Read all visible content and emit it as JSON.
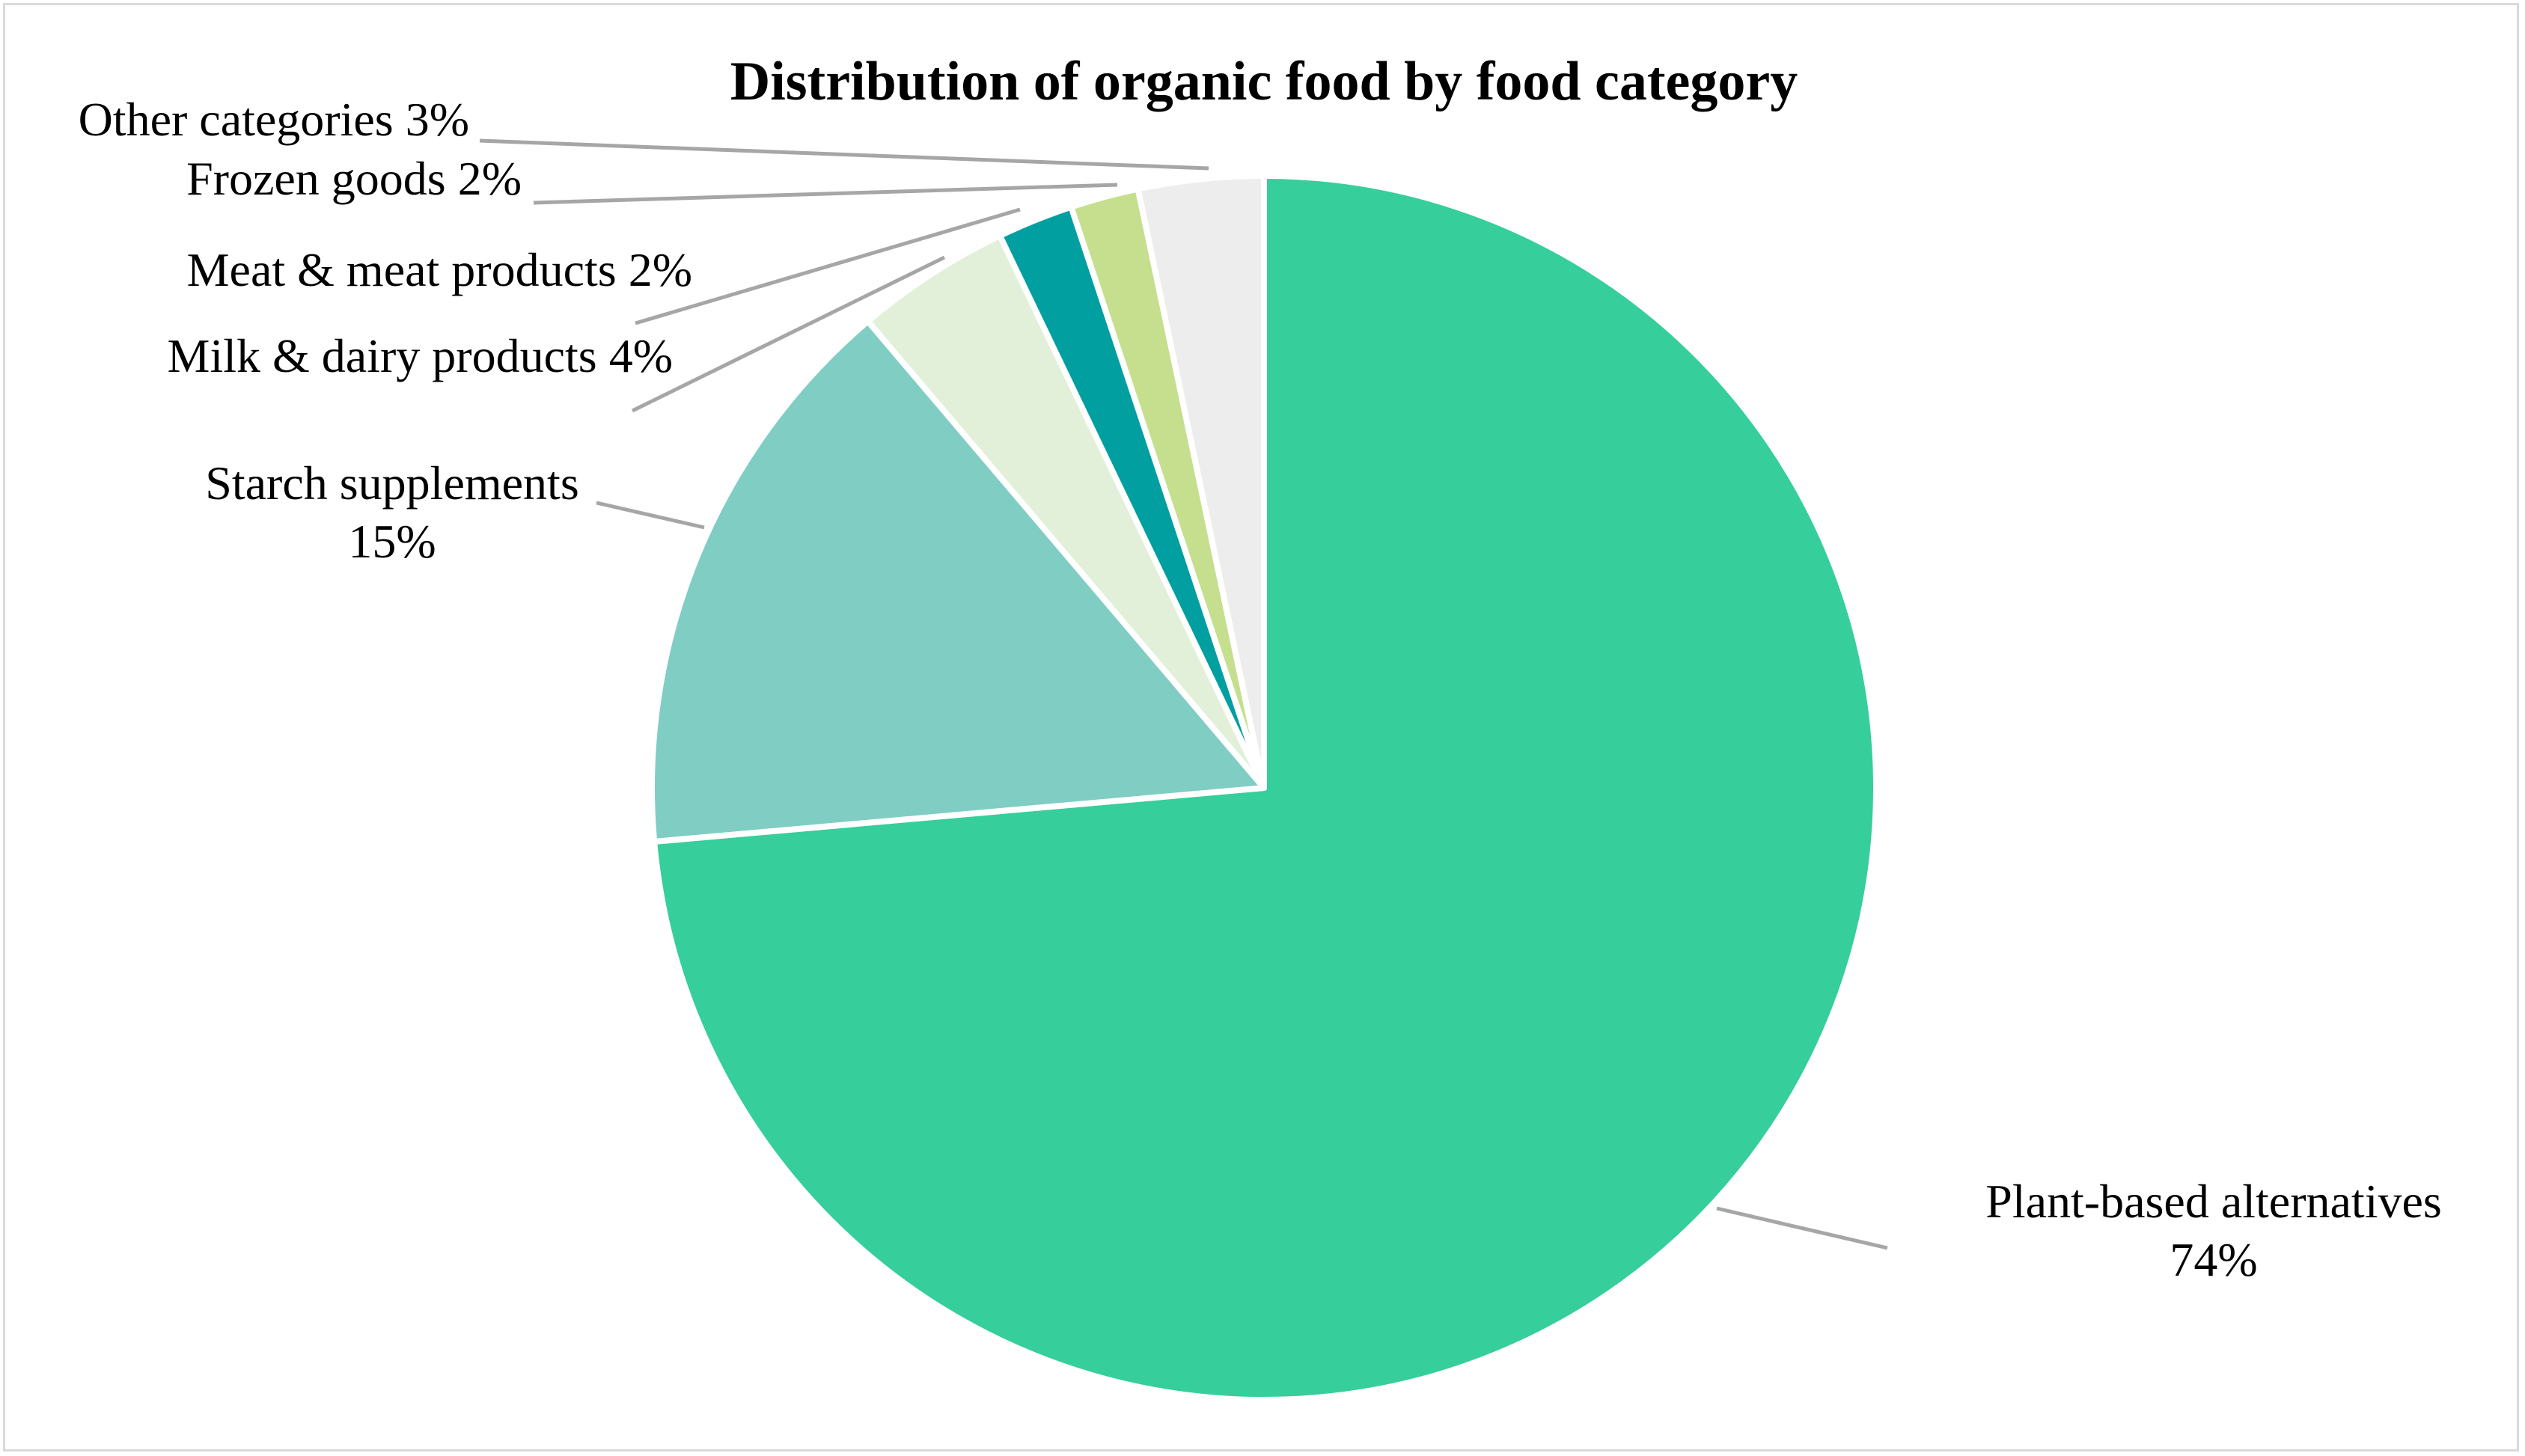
{
  "chart_data": {
    "type": "pie",
    "title": "Distribution of organic food by food category",
    "start_angle_deg": 0,
    "direction": "clockwise",
    "slices": [
      {
        "name": "Plant-based alternatives",
        "value": 73.6,
        "label_lines": [
          "Plant-based alternatives",
          "74%"
        ],
        "color": "#36ce9a"
      },
      {
        "name": "Starch supplements",
        "value": 15.2,
        "label_lines": [
          "Starch supplements",
          "15%"
        ],
        "color": "#80cdc3"
      },
      {
        "name": "Milk & dairy products",
        "value": 4.1,
        "label_lines": [
          "Milk & dairy products 4%"
        ],
        "color": "#e3f0d9"
      },
      {
        "name": "Meat & meat products",
        "value": 2.0,
        "label_lines": [
          "Meat & meat products 2%"
        ],
        "color": "#029fa0"
      },
      {
        "name": "Frozen goods",
        "value": 1.8,
        "label_lines": [
          "Frozen goods 2%"
        ],
        "color": "#c5df8f"
      },
      {
        "name": "Other categories",
        "value": 3.3,
        "label_lines": [
          "Other categories 3%"
        ],
        "color": "#ededed"
      }
    ]
  }
}
